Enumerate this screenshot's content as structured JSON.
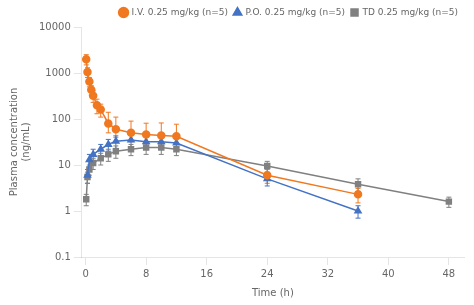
{
  "chart_data": {
    "type": "line",
    "xlabel": "Time (h)",
    "ylabel": "Plasma concentration\n(ng/mL)",
    "log": "y",
    "grid": false,
    "legend": "upper right",
    "xlim": [
      -0.5,
      50
    ],
    "xticks": [
      0,
      8,
      16,
      24,
      32,
      40,
      48
    ],
    "ylim": [
      0.1,
      10000
    ],
    "yticks": [
      0.1,
      1,
      10,
      100,
      1000,
      10000
    ],
    "series": [
      {
        "name": "I.V. 0.25 mg/kg (n=5)",
        "color": "#f07820",
        "marker": "circle",
        "x": [
          0.083,
          0.25,
          0.5,
          0.75,
          1,
          1.5,
          2,
          3,
          4,
          6,
          8,
          10,
          12,
          24,
          36
        ],
        "values": [
          2000,
          1050,
          650,
          430,
          320,
          200,
          160,
          80,
          60,
          50,
          46,
          44,
          42,
          6.0,
          2.3
        ],
        "yerr_lo": [
          500,
          250,
          150,
          100,
          90,
          70,
          50,
          30,
          20,
          18,
          16,
          18,
          18,
          2.0,
          0.8
        ],
        "yerr_hi": [
          500,
          250,
          150,
          100,
          90,
          70,
          50,
          60,
          50,
          40,
          35,
          38,
          35,
          2.0,
          0.8
        ]
      },
      {
        "name": "P.O. 0.25 mg/kg (n=5)",
        "color": "#4472c4",
        "marker": "triangle",
        "x": [
          0.25,
          0.5,
          1,
          2,
          3,
          4,
          6,
          8,
          10,
          12,
          24,
          36
        ],
        "values": [
          6.0,
          13,
          17,
          22,
          28,
          33,
          35,
          32,
          32,
          30,
          5.0,
          1.0
        ],
        "yerr_lo": [
          2,
          4,
          5,
          6,
          8,
          10,
          10,
          10,
          10,
          9,
          1.5,
          0.3
        ],
        "yerr_hi": [
          2,
          4,
          5,
          6,
          8,
          10,
          10,
          10,
          10,
          9,
          1.5,
          0.3
        ]
      },
      {
        "name": "TD 0.25 mg/kg (n=5)",
        "color": "#808080",
        "marker": "square",
        "x": [
          0.083,
          0.25,
          0.5,
          1,
          2,
          3,
          4,
          6,
          8,
          10,
          12,
          24,
          36,
          48
        ],
        "values": [
          1.8,
          5.5,
          8.0,
          11,
          14,
          17,
          20,
          22,
          24,
          24,
          22,
          9.5,
          3.8,
          1.6
        ],
        "yerr_lo": [
          0.5,
          1.5,
          2.0,
          3,
          4,
          5,
          6,
          6,
          7,
          7,
          6,
          2.5,
          1.2,
          0.4
        ],
        "yerr_hi": [
          0.5,
          1.5,
          2.0,
          3,
          4,
          5,
          6,
          6,
          7,
          7,
          6,
          2.5,
          1.2,
          0.4
        ]
      }
    ]
  }
}
